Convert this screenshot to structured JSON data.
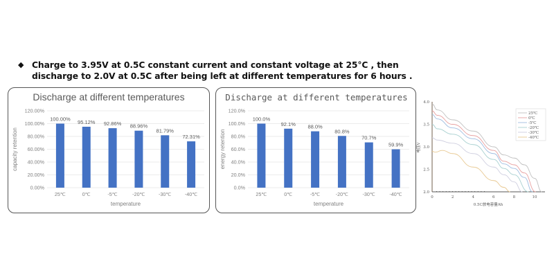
{
  "heading": {
    "bullet": "◆",
    "line1": "Charge to 3.95V at 0.5C constant current and constant voltage at 25°C , then",
    "line2": "discharge to 2.0V at 0.5C after being left at different temperatures for 6 hours ."
  },
  "colors": {
    "bar": "#4472c4",
    "grid": "#e4e4e4",
    "panel_border": "#555555"
  },
  "chart1": {
    "title": "Discharge at different temperatures",
    "ylabel": "capacity retention",
    "xlabel": "temperature",
    "yticks": [
      "0.00%",
      "20.00%",
      "40.00%",
      "60.00%",
      "80.00%",
      "100.00%",
      "120.00%"
    ],
    "categories": [
      "25℃",
      "0℃",
      "-5℃",
      "-20℃",
      "-30℃",
      "-40℃"
    ],
    "labels": [
      "100.00%",
      "95.12%",
      "92.86%",
      "88.96%",
      "81.79%",
      "72.31%"
    ]
  },
  "chart2": {
    "title": "Discharge at different temperatures",
    "ylabel": "energy retention",
    "xlabel": "temperature",
    "yticks": [
      "0.0%",
      "20.0%",
      "40.0%",
      "60.0%",
      "80.0%",
      "100.0%",
      "120.0%"
    ],
    "categories": [
      "25℃",
      "0℃",
      "-5℃",
      "-20℃",
      "-30℃",
      "-40℃"
    ],
    "labels": [
      "100.0%",
      "92.1%",
      "88.0%",
      "80.8%",
      "70.7%",
      "59.9%"
    ]
  },
  "chart3": {
    "ylabel": "电压V",
    "xlabel": "0.5C放电容量Ah",
    "yticks": [
      "2.0",
      "2.5",
      "3.0",
      "3.5",
      "4.0"
    ],
    "xticks": [
      "0",
      "2",
      "4",
      "6",
      "8",
      "10"
    ],
    "legend": [
      "25℃",
      "0℃",
      "-5℃",
      "-20℃",
      "-30℃",
      "-40℃"
    ]
  },
  "chart_data": [
    {
      "type": "bar",
      "title": "Discharge at different temperatures",
      "xlabel": "temperature",
      "ylabel": "capacity retention",
      "categories": [
        "25℃",
        "0℃",
        "-5℃",
        "-20℃",
        "-30℃",
        "-40℃"
      ],
      "values": [
        100.0,
        95.12,
        92.86,
        88.96,
        81.79,
        72.31
      ],
      "unit": "%",
      "ylim": [
        0,
        120
      ],
      "grid": true,
      "color": "#4472c4"
    },
    {
      "type": "bar",
      "title": "Discharge at different temperatures",
      "xlabel": "temperature",
      "ylabel": "energy retention",
      "categories": [
        "25℃",
        "0℃",
        "-5℃",
        "-20℃",
        "-30℃",
        "-40℃"
      ],
      "values": [
        100.0,
        92.1,
        88.0,
        80.8,
        70.7,
        59.9
      ],
      "unit": "%",
      "ylim": [
        0,
        120
      ],
      "grid": true,
      "color": "#4472c4"
    },
    {
      "type": "line",
      "title": "",
      "xlabel": "0.5C放电容量Ah",
      "ylabel": "电压V",
      "xlim": [
        0,
        11
      ],
      "ylim": [
        2.0,
        4.0
      ],
      "legend_position": "upper right",
      "series": [
        {
          "name": "25℃",
          "color": "#c0c0c0",
          "x": [
            0,
            0.5,
            2,
            4,
            6,
            7,
            8,
            9,
            10,
            10.7
          ],
          "y": [
            3.95,
            3.82,
            3.6,
            3.35,
            3.0,
            2.82,
            2.75,
            2.6,
            2.3,
            2.0
          ]
        },
        {
          "name": "0℃",
          "color": "#e8a0a0",
          "x": [
            0,
            0.5,
            2,
            4,
            6,
            7,
            8,
            9,
            10.1
          ],
          "y": [
            3.8,
            3.7,
            3.5,
            3.25,
            2.92,
            2.68,
            2.6,
            2.42,
            2.0
          ]
        },
        {
          "name": "-5℃",
          "color": "#9fbde0",
          "x": [
            0,
            0.5,
            2,
            4,
            6,
            7,
            8,
            9,
            9.8
          ],
          "y": [
            3.72,
            3.62,
            3.42,
            3.18,
            2.85,
            2.62,
            2.52,
            2.32,
            2.0
          ]
        },
        {
          "name": "-20℃",
          "color": "#a8d0d0",
          "x": [
            0,
            0.5,
            2,
            4,
            6,
            7,
            8,
            9.4
          ],
          "y": [
            3.5,
            3.4,
            3.28,
            3.05,
            2.72,
            2.52,
            2.38,
            2.0
          ]
        },
        {
          "name": "-30℃",
          "color": "#cfcfe0",
          "x": [
            0,
            0.5,
            2,
            4,
            6,
            7,
            8,
            8.8
          ],
          "y": [
            3.2,
            3.15,
            3.08,
            2.85,
            2.55,
            2.38,
            2.22,
            2.0
          ]
        },
        {
          "name": "-40℃",
          "color": "#e8c890",
          "x": [
            0,
            0.3,
            1,
            2,
            4,
            6,
            7,
            7.6
          ],
          "y": [
            2.9,
            2.88,
            2.92,
            2.85,
            2.55,
            2.25,
            2.1,
            2.0
          ]
        }
      ]
    }
  ]
}
